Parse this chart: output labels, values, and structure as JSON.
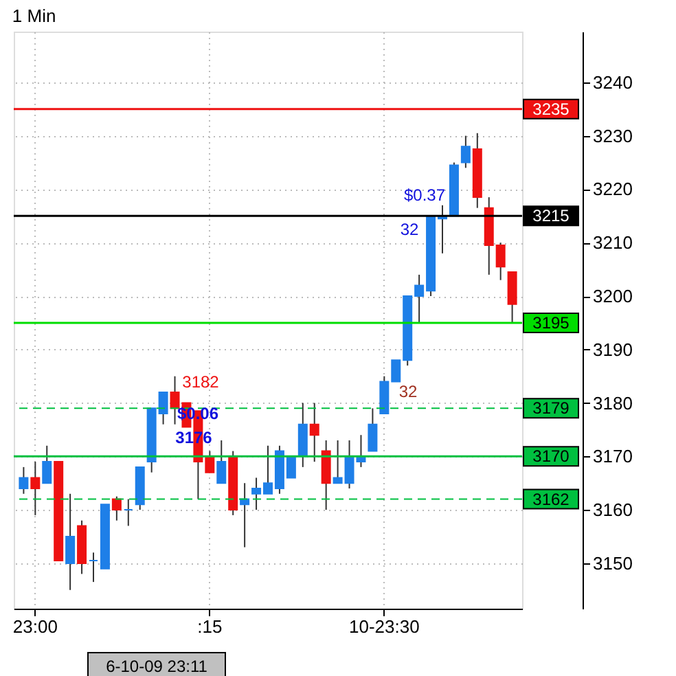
{
  "chart_data": {
    "type": "candlestick",
    "title": "1 Min",
    "categories": [
      null,
      "23:00",
      null,
      null,
      null,
      null,
      null,
      null,
      null,
      null,
      null,
      null,
      null,
      null,
      null,
      null,
      ":15",
      null,
      null,
      null,
      null,
      null,
      null,
      null,
      null,
      null,
      null,
      null,
      null,
      null,
      null,
      "10-23:30",
      null,
      null,
      null,
      null,
      null,
      null,
      null,
      null,
      null,
      null,
      null
    ],
    "ohlc": [
      [
        3164,
        3168,
        3163,
        3166
      ],
      [
        3166,
        3169,
        3159,
        3164
      ],
      [
        3165,
        3172,
        3165,
        3169
      ],
      [
        3169,
        3169,
        3150.5,
        3150.5
      ],
      [
        3150,
        3163,
        3145,
        3155
      ],
      [
        3157,
        3158,
        3148,
        3150
      ],
      [
        3150.5,
        3152,
        3146.5,
        3150.5
      ],
      [
        3149,
        3161,
        3149,
        3161
      ],
      [
        3162,
        3162.5,
        3158,
        3160
      ],
      [
        3160,
        3162,
        3157,
        3160
      ],
      [
        3161,
        3168,
        3160,
        3168
      ],
      [
        3169,
        3179,
        3167,
        3179
      ],
      [
        3178,
        3182,
        3176,
        3182
      ],
      [
        3182,
        3185,
        3176,
        3179
      ],
      [
        3180,
        3180,
        3175.5,
        3175.5
      ],
      [
        3178.5,
        3178.5,
        3162,
        3169
      ],
      [
        3170,
        3171,
        3167,
        3167
      ],
      [
        3165,
        3173,
        3165,
        3169
      ],
      [
        3170,
        3171,
        3159,
        3160
      ],
      [
        3161,
        3165,
        3153,
        3162
      ],
      [
        3163,
        3166,
        3160,
        3164
      ],
      [
        3163,
        3172,
        3163,
        3165
      ],
      [
        3164,
        3172,
        3163,
        3171
      ],
      [
        3166,
        3170,
        3166,
        3170
      ],
      [
        3170,
        3180,
        3168,
        3176
      ],
      [
        3176,
        3180,
        3169,
        3174
      ],
      [
        3171,
        3173,
        3160,
        3165
      ],
      [
        3165,
        3173,
        3165,
        3166
      ],
      [
        3165,
        3173,
        3164,
        3170
      ],
      [
        3169,
        3174,
        3168,
        3170
      ],
      [
        3171,
        3179,
        3171,
        3176
      ],
      [
        3178,
        3185,
        3178,
        3184
      ],
      [
        3184,
        3188,
        3184,
        3188
      ],
      [
        3188,
        3200,
        3187,
        3200
      ],
      [
        3200,
        3204,
        3195,
        3202
      ],
      [
        3201,
        3215,
        3200,
        3215
      ],
      [
        3214.5,
        3217,
        3208,
        3215
      ],
      [
        3215,
        3225,
        3215,
        3224.5
      ],
      [
        3225,
        3230,
        3224,
        3228
      ],
      [
        3227.5,
        3230.5,
        3216.5,
        3218.5
      ],
      [
        3216.5,
        3218.5,
        3204,
        3209.5
      ],
      [
        3209.5,
        3210,
        3203,
        3205.5
      ],
      [
        3204.5,
        3204.5,
        3195,
        3198.5
      ]
    ],
    "colors": [
      "#1e7fe8",
      "#ee1111",
      "#1e7fe8",
      "#ee1111",
      "#1e7fe8",
      "#ee1111",
      "#1e7fe8",
      "#1e7fe8",
      "#ee1111",
      "#1e7fe8",
      "#1e7fe8",
      "#1e7fe8",
      "#1e7fe8",
      "#ee1111",
      "#ee1111",
      "#ee1111",
      "#ee1111",
      "#1e7fe8",
      "#ee1111",
      "#1e7fe8",
      "#1e7fe8",
      "#1e7fe8",
      "#1e7fe8",
      "#1e7fe8",
      "#1e7fe8",
      "#ee1111",
      "#ee1111",
      "#1e7fe8",
      "#1e7fe8",
      "#1e7fe8",
      "#1e7fe8",
      "#1e7fe8",
      "#1e7fe8",
      "#1e7fe8",
      "#1e7fe8",
      "#1e7fe8",
      "#1e7fe8",
      "#1e7fe8",
      "#1e7fe8",
      "#ee1111",
      "#ee1111",
      "#ee1111",
      "#ee1111"
    ],
    "ylim": [
      3141.5,
      3249.5
    ],
    "yticks": [
      3150,
      3160,
      3170,
      3180,
      3190,
      3200,
      3210,
      3220,
      3230,
      3240
    ],
    "grid": true,
    "ref_lines": [
      {
        "axis": "y",
        "value": 3235,
        "label": "3235",
        "color": "#ee1111",
        "line_style": "solid"
      },
      {
        "axis": "y",
        "value": 3215,
        "label": "3215",
        "color": "#000000",
        "line_style": "solid"
      },
      {
        "axis": "y",
        "value": 3195,
        "label": "3195",
        "color": "#00dd00",
        "line_style": "solid"
      },
      {
        "axis": "y",
        "value": 3179,
        "label": "3179",
        "color": "#00c040",
        "line_style": "dashed"
      },
      {
        "axis": "y",
        "value": 3170,
        "label": "3170",
        "color": "#00c040",
        "line_style": "solid"
      },
      {
        "axis": "y",
        "value": 3162,
        "label": "3162",
        "color": "#00c040",
        "line_style": "dashed"
      }
    ],
    "annotations": [
      "3182",
      {
        "text": "$0.06",
        "y": 3178
      },
      {
        "text": "3176",
        "y": 3173.5
      },
      "$0.37",
      "32",
      "32",
      "6-10-09 23:11"
    ]
  }
}
